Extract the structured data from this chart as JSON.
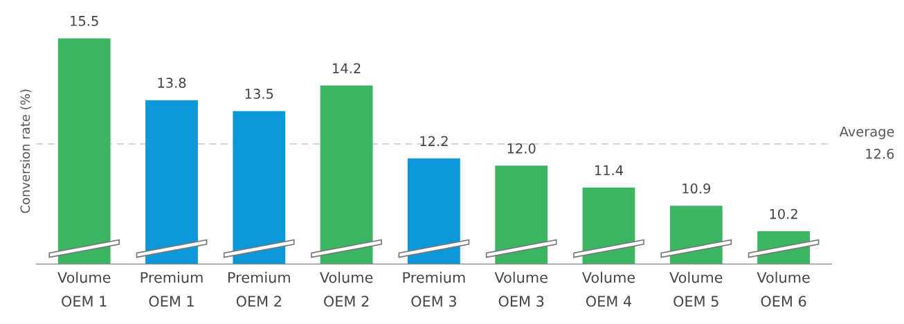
{
  "chart_data": {
    "type": "bar",
    "ylabel": "Conversion rate (%)",
    "categories": [
      "Volume\nOEM 1",
      "Premium\nOEM 1",
      "Premium\nOEM 2",
      "Volume\nOEM 2",
      "Premium\nOEM 3",
      "Volume\nOEM 3",
      "Volume\nOEM 4",
      "Volume\nOEM 5",
      "Volume\nOEM 6"
    ],
    "values": [
      15.5,
      13.8,
      13.5,
      14.2,
      12.2,
      12.0,
      11.4,
      10.9,
      10.2
    ],
    "value_labels": [
      "15.5",
      "13.8",
      "13.5",
      "14.2",
      "12.2",
      "12.0",
      "11.4",
      "10.9",
      "10.2"
    ],
    "colors": [
      "#3cb562",
      "#0b97d8",
      "#0b97d8",
      "#3cb562",
      "#0b97d8",
      "#3cb562",
      "#3cb562",
      "#3cb562",
      "#3cb562"
    ],
    "ylim": [
      9.3,
      15.5
    ],
    "tick_labels": "x",
    "grid": false,
    "ref_lines": [
      {
        "axis": "y",
        "value": 12.6,
        "label": "Average\n12.6",
        "color": "#d0d0d0",
        "line_style": "dashed"
      }
    ]
  }
}
